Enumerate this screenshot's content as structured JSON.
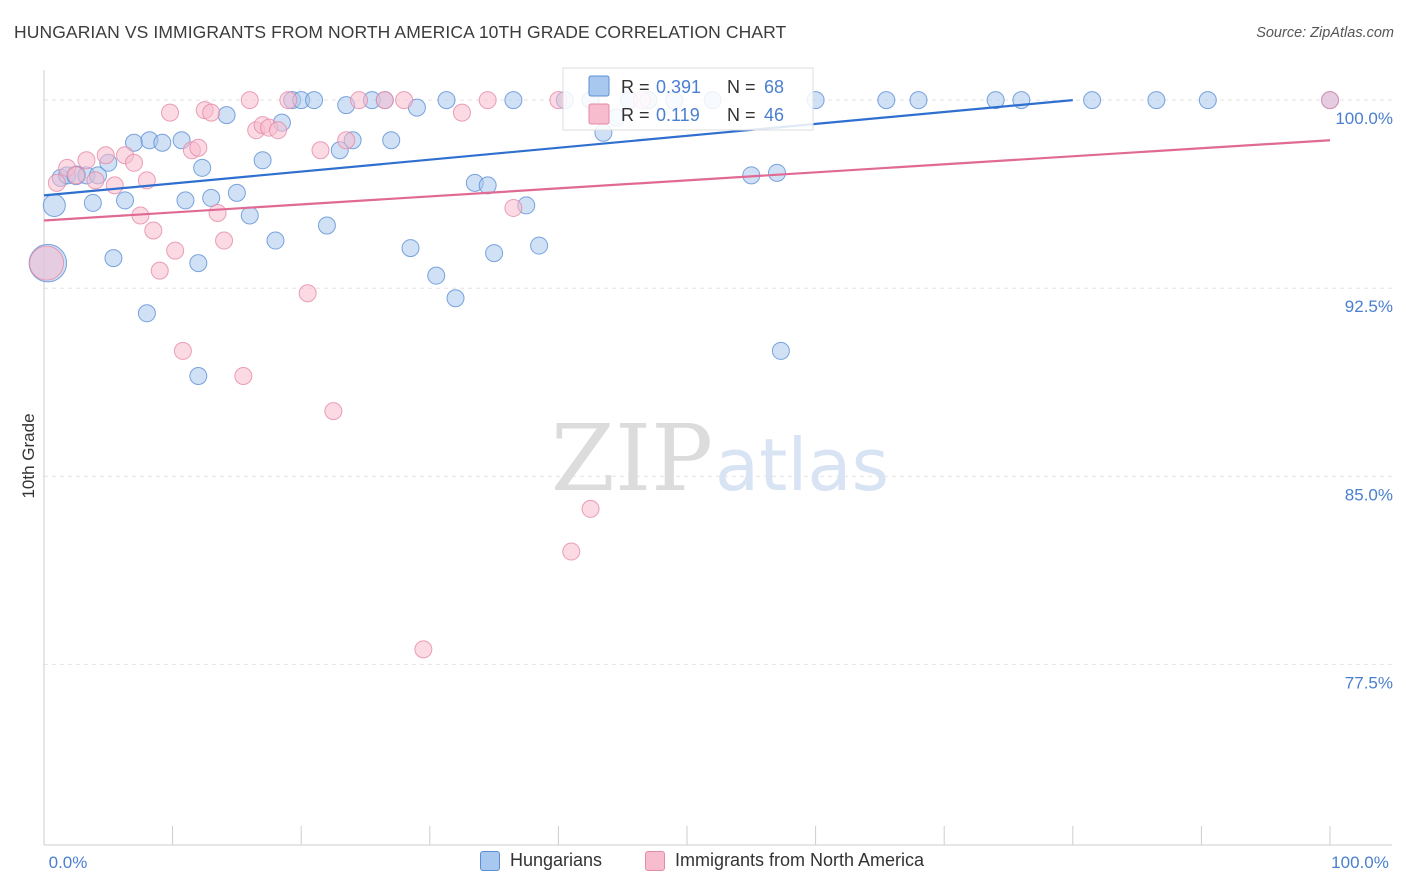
{
  "header": {
    "title": "HUNGARIAN VS IMMIGRANTS FROM NORTH AMERICA 10TH GRADE CORRELATION CHART",
    "source": "Source: ZipAtlas.com"
  },
  "watermark": {
    "zip": "ZIP",
    "atlas": "atlas"
  },
  "colors": {
    "blue_fill": "#a9c8ef",
    "blue_stroke": "#5b8fd4",
    "blue_line": "#2f6fcf",
    "pink_fill": "#f7bccd",
    "pink_stroke": "#e58aa6",
    "pink_line": "#e06a93",
    "tick_text": "#4a7fd0",
    "grid": "#e3e3e3"
  },
  "chart_data": {
    "type": "scatter",
    "title": "HUNGARIAN VS IMMIGRANTS FROM NORTH AMERICA 10TH GRADE CORRELATION CHART",
    "xlabel": "",
    "ylabel": "10th Grade",
    "xlim": [
      0,
      100
    ],
    "ylim": [
      70.3,
      101.2
    ],
    "x_tick_labels": [
      "0.0%",
      "100.0%"
    ],
    "y_ticks": [
      {
        "value": 100.0,
        "label": "100.0%"
      },
      {
        "value": 92.5,
        "label": "92.5%"
      },
      {
        "value": 85.0,
        "label": "85.0%"
      },
      {
        "value": 77.5,
        "label": "77.5%"
      }
    ],
    "legend": [
      {
        "name": "Hungarians",
        "r_label": "R =",
        "r": "0.391",
        "n_label": "N =",
        "n": "68",
        "color": "blue"
      },
      {
        "name": "Immigrants from North America",
        "r_label": "R =",
        "r": "0.119",
        "n_label": "N =",
        "n": "46",
        "color": "pink"
      }
    ],
    "series": [
      {
        "name": "Hungarians",
        "color": "blue",
        "trend": {
          "x": [
            0,
            80
          ],
          "y": [
            96.2,
            100.0
          ]
        },
        "points": [
          [
            0.3,
            93.5,
            2.2
          ],
          [
            0.8,
            95.8,
            1.3
          ],
          [
            1.3,
            96.9,
            1.0
          ],
          [
            1.8,
            97.0,
            1.0
          ],
          [
            2.5,
            97.0,
            1.1
          ],
          [
            3.3,
            97.0,
            1.0
          ],
          [
            4.2,
            97.0,
            1.0
          ],
          [
            5.0,
            97.5,
            1.0
          ],
          [
            3.8,
            95.9,
            1.0
          ],
          [
            6.3,
            96.0,
            1.0
          ],
          [
            5.4,
            93.7,
            1.0
          ],
          [
            7.0,
            98.3,
            1.0
          ],
          [
            8.2,
            98.4,
            1.0
          ],
          [
            9.2,
            98.3,
            1.0
          ],
          [
            10.7,
            98.4,
            1.0
          ],
          [
            11.0,
            96.0,
            1.0
          ],
          [
            12.3,
            97.3,
            1.0
          ],
          [
            13.0,
            96.1,
            1.0
          ],
          [
            14.2,
            99.4,
            1.0
          ],
          [
            15.0,
            96.3,
            1.0
          ],
          [
            16.0,
            95.4,
            1.0
          ],
          [
            17.0,
            97.6,
            1.0
          ],
          [
            18.0,
            94.4,
            1.0
          ],
          [
            18.5,
            99.1,
            1.0
          ],
          [
            19.3,
            100.0,
            1.0
          ],
          [
            20.0,
            100.0,
            1.0
          ],
          [
            21.0,
            100.0,
            1.0
          ],
          [
            22.0,
            95.0,
            1.0
          ],
          [
            23.0,
            98.0,
            1.0
          ],
          [
            23.5,
            99.8,
            1.0
          ],
          [
            24.0,
            98.4,
            1.0
          ],
          [
            25.5,
            100.0,
            1.0
          ],
          [
            26.5,
            100.0,
            1.0
          ],
          [
            27.0,
            98.4,
            1.0
          ],
          [
            28.5,
            94.1,
            1.0
          ],
          [
            29.0,
            99.7,
            1.0
          ],
          [
            30.5,
            93.0,
            1.0
          ],
          [
            31.3,
            100.0,
            1.0
          ],
          [
            32.0,
            92.1,
            1.0
          ],
          [
            33.5,
            96.7,
            1.0
          ],
          [
            34.5,
            96.6,
            1.0
          ],
          [
            35.0,
            93.9,
            1.0
          ],
          [
            36.5,
            100.0,
            1.0
          ],
          [
            37.5,
            95.8,
            1.0
          ],
          [
            38.5,
            94.2,
            1.0
          ],
          [
            40.5,
            100.0,
            1.0
          ],
          [
            42.5,
            100.0,
            1.0
          ],
          [
            43.5,
            98.7,
            1.0
          ],
          [
            44.5,
            99.3,
            1.0
          ],
          [
            45.5,
            100.0,
            1.0
          ],
          [
            47.0,
            100.0,
            1.0
          ],
          [
            49.0,
            100.0,
            1.0
          ],
          [
            52.0,
            100.0,
            1.0
          ],
          [
            55.0,
            97.0,
            1.0
          ],
          [
            57.0,
            97.1,
            1.0
          ],
          [
            57.3,
            90.0,
            1.0
          ],
          [
            60.0,
            100.0,
            1.0
          ],
          [
            65.5,
            100.0,
            1.0
          ],
          [
            68.0,
            100.0,
            1.0
          ],
          [
            74.0,
            100.0,
            1.0
          ],
          [
            76.0,
            100.0,
            1.0
          ],
          [
            81.5,
            100.0,
            1.0
          ],
          [
            86.5,
            100.0,
            1.0
          ],
          [
            90.5,
            100.0,
            1.0
          ],
          [
            100.0,
            100.0,
            1.0
          ],
          [
            8.0,
            91.5,
            1.0
          ],
          [
            12.0,
            93.5,
            1.0
          ],
          [
            12.0,
            89.0,
            1.0
          ]
        ]
      },
      {
        "name": "Immigrants from North America",
        "color": "pink",
        "trend": {
          "x": [
            0,
            100
          ],
          "y": [
            95.2,
            98.4
          ]
        },
        "points": [
          [
            0.2,
            93.5,
            2.0
          ],
          [
            1.0,
            96.7,
            1.0
          ],
          [
            1.8,
            97.3,
            1.0
          ],
          [
            2.5,
            97.0,
            1.0
          ],
          [
            3.3,
            97.6,
            1.0
          ],
          [
            4.0,
            96.8,
            1.0
          ],
          [
            4.8,
            97.8,
            1.0
          ],
          [
            5.5,
            96.6,
            1.0
          ],
          [
            6.3,
            97.8,
            1.0
          ],
          [
            7.0,
            97.5,
            1.0
          ],
          [
            7.5,
            95.4,
            1.0
          ],
          [
            8.0,
            96.8,
            1.0
          ],
          [
            8.5,
            94.8,
            1.0
          ],
          [
            9.0,
            93.2,
            1.0
          ],
          [
            9.8,
            99.5,
            1.0
          ],
          [
            10.2,
            94.0,
            1.0
          ],
          [
            10.8,
            90.0,
            1.0
          ],
          [
            11.5,
            98.0,
            1.0
          ],
          [
            12.0,
            98.1,
            1.0
          ],
          [
            12.5,
            99.6,
            1.0
          ],
          [
            13.0,
            99.5,
            1.0
          ],
          [
            13.5,
            95.5,
            1.0
          ],
          [
            14.0,
            94.4,
            1.0
          ],
          [
            15.5,
            89.0,
            1.0
          ],
          [
            16.0,
            100.0,
            1.0
          ],
          [
            16.5,
            98.8,
            1.0
          ],
          [
            17.0,
            99.0,
            1.0
          ],
          [
            17.5,
            98.9,
            1.0
          ],
          [
            18.2,
            98.8,
            1.0
          ],
          [
            19.0,
            100.0,
            1.0
          ],
          [
            20.5,
            92.3,
            1.0
          ],
          [
            21.5,
            98.0,
            1.0
          ],
          [
            22.5,
            87.6,
            1.0
          ],
          [
            23.5,
            98.4,
            1.0
          ],
          [
            24.5,
            100.0,
            1.0
          ],
          [
            26.5,
            100.0,
            1.0
          ],
          [
            28.0,
            100.0,
            1.0
          ],
          [
            29.5,
            78.1,
            1.0
          ],
          [
            32.5,
            99.5,
            1.0
          ],
          [
            34.5,
            100.0,
            1.0
          ],
          [
            36.5,
            95.7,
            1.0
          ],
          [
            40.0,
            100.0,
            1.0
          ],
          [
            41.0,
            82.0,
            1.0
          ],
          [
            42.5,
            83.7,
            1.0
          ],
          [
            46.5,
            100.0,
            1.0
          ],
          [
            100.0,
            100.0,
            1.0
          ]
        ]
      }
    ]
  }
}
